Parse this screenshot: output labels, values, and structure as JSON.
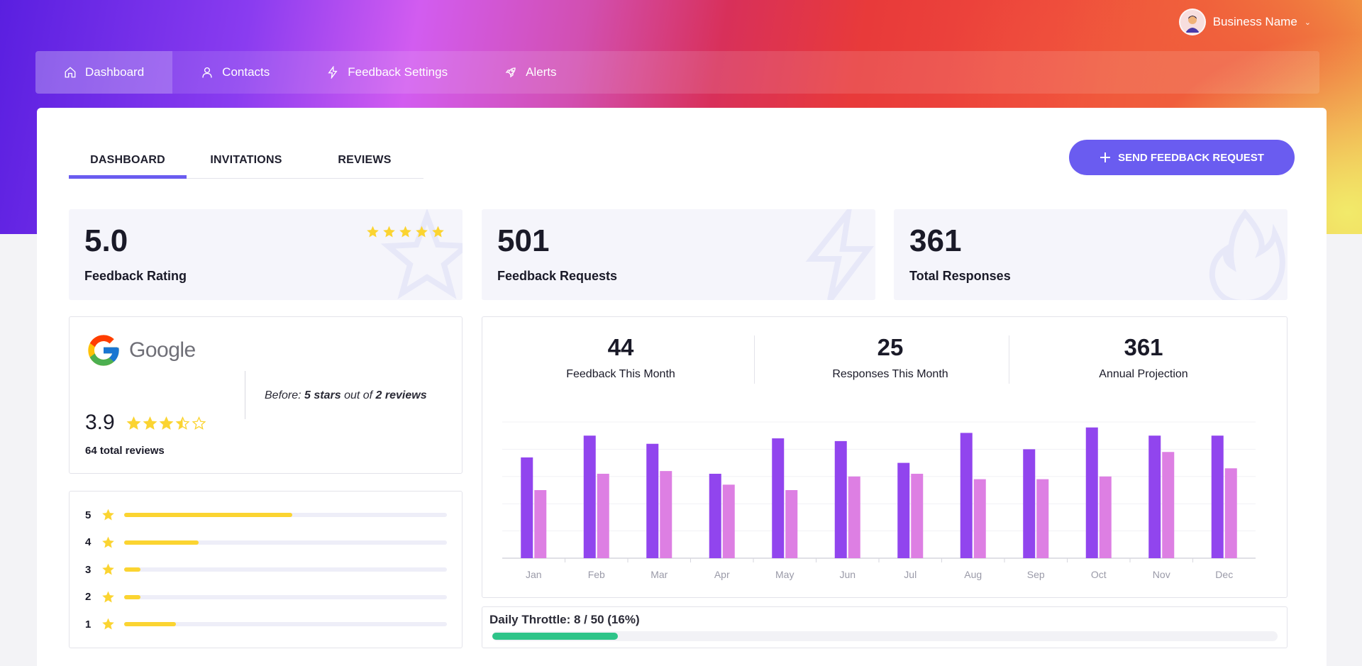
{
  "header": {
    "business_name": "Business Name",
    "avatar_icon": "user-avatar"
  },
  "nav": {
    "items": [
      {
        "label": "Dashboard",
        "icon": "home-icon"
      },
      {
        "label": "Contacts",
        "icon": "user-icon"
      },
      {
        "label": "Feedback Settings",
        "icon": "lightning-icon"
      },
      {
        "label": "Alerts",
        "icon": "rocket-icon"
      }
    ],
    "active": "Dashboard"
  },
  "tabs": [
    "DASHBOARD",
    "INVITATIONS",
    "REVIEWS"
  ],
  "send_button": "SEND FEEDBACK REQUEST",
  "stats": [
    {
      "value": "5.0",
      "label": "Feedback Rating"
    },
    {
      "value": "501",
      "label": "Feedback Requests"
    },
    {
      "value": "361",
      "label": "Total Responses"
    }
  ],
  "google": {
    "brand": "Google",
    "rating": "3.9",
    "stars": 3.5,
    "total": "64 total reviews",
    "before_prefix": "Before: ",
    "before_stars": "5 stars",
    "before_mid": " out of ",
    "before_reviews": "2 reviews"
  },
  "distribution": [
    {
      "star": "5",
      "fraction": 0.52
    },
    {
      "star": "4",
      "fraction": 0.23
    },
    {
      "star": "3",
      "fraction": 0.05
    },
    {
      "star": "2",
      "fraction": 0.05
    },
    {
      "star": "1",
      "fraction": 0.16
    }
  ],
  "metrics": [
    {
      "value": "44",
      "label": "Feedback This Month"
    },
    {
      "value": "25",
      "label": "Responses This Month"
    },
    {
      "value": "361",
      "label": "Annual Projection"
    }
  ],
  "throttle": {
    "label": "Daily Throttle: 8 / 50 (16%)",
    "fraction": 0.16
  },
  "colors": {
    "accent": "#6a5cf0",
    "series1": "#9145ee",
    "series2": "#dd7fe3",
    "star": "#fbd431",
    "throttle": "#2ec489"
  },
  "chart_data": {
    "type": "bar",
    "categories": [
      "Jan",
      "Feb",
      "Mar",
      "Apr",
      "May",
      "Jun",
      "Jul",
      "Aug",
      "Sep",
      "Oct",
      "Nov",
      "Dec"
    ],
    "series": [
      {
        "values": [
          74,
          90,
          84,
          62,
          88,
          86,
          70,
          92,
          80,
          96,
          90,
          90
        ]
      },
      {
        "values": [
          50,
          62,
          64,
          54,
          50,
          60,
          62,
          58,
          58,
          60,
          78,
          66
        ]
      }
    ],
    "ylim": [
      0,
      100
    ],
    "grid": true
  }
}
